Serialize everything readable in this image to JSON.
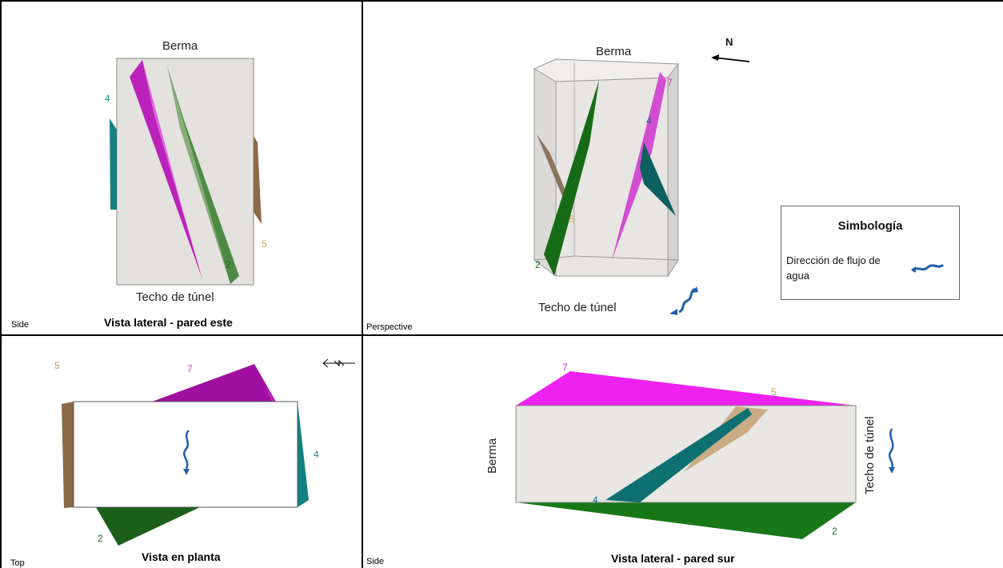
{
  "views": [
    {
      "id": "tl",
      "view_label": "Side",
      "title": "Vista lateral - pared este",
      "top_label": "Berma",
      "bottom_label": "Techo de túnel"
    },
    {
      "id": "tr",
      "view_label": "Perspective",
      "top_label": "Berma",
      "bottom_label": "Techo de túnel",
      "north_label": "N"
    },
    {
      "id": "bl",
      "view_label": "Top",
      "title": "Vista en planta"
    },
    {
      "id": "br",
      "view_label": "Side",
      "title": "Vista lateral - pared sur",
      "left_label": "Berma",
      "right_label": "Techo de túnel"
    }
  ],
  "legend": {
    "title": "Simbología",
    "flow_text": "Dirección de flujo de agua",
    "flow_icon": "water-flow-icon"
  },
  "colors": {
    "plane_2": "#2e7d2e",
    "plane_4": "#138787",
    "plane_5": "#a07850",
    "plane_7": "#cc33cc",
    "box_fill": "#e3e2e0",
    "border": "#000000",
    "flow_icon": "#1f5fa8"
  },
  "planes": [
    {
      "id": "2",
      "label": "2",
      "color": "#2e8b2e"
    },
    {
      "id": "4",
      "label": "4",
      "color": "#1b8a8a"
    },
    {
      "id": "5",
      "label": "5",
      "color": "#b08860"
    },
    {
      "id": "7",
      "label": "7",
      "color": "#cc33cc"
    }
  ]
}
